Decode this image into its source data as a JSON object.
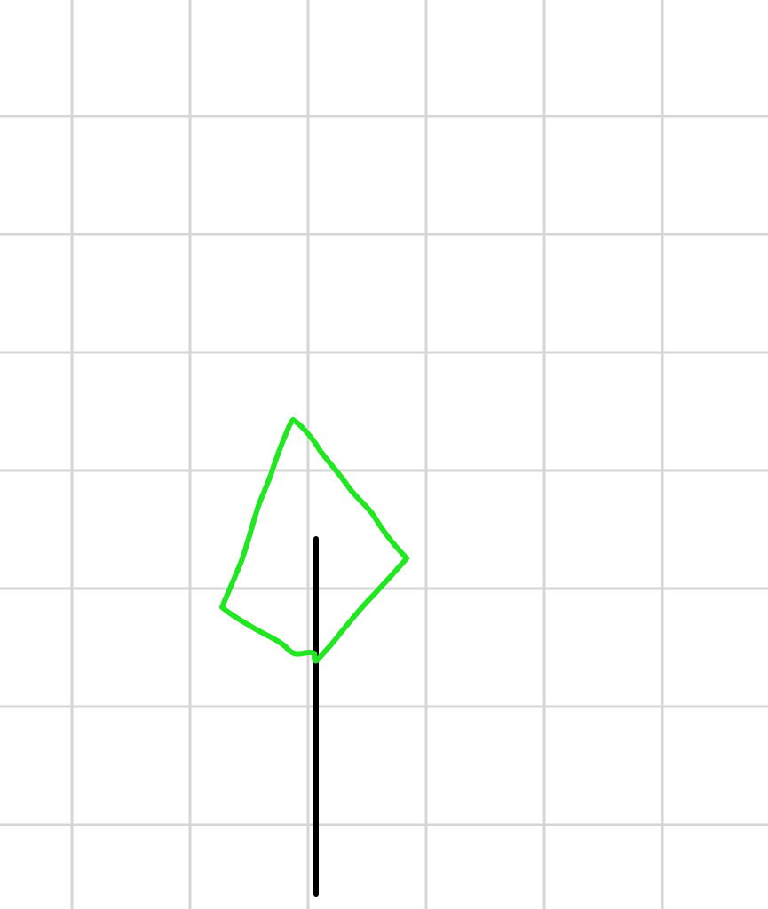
{
  "canvas": {
    "background_color": "#ffffff",
    "grid": {
      "visible": true,
      "line_color": "#d6d6d6"
    }
  },
  "drawing": {
    "freehand_shape": {
      "kind": "closed-freehand-quadrilateral",
      "stroke_color": "#22e622"
    },
    "straight_line": {
      "kind": "vertical-line",
      "stroke_color": "#000000"
    }
  }
}
